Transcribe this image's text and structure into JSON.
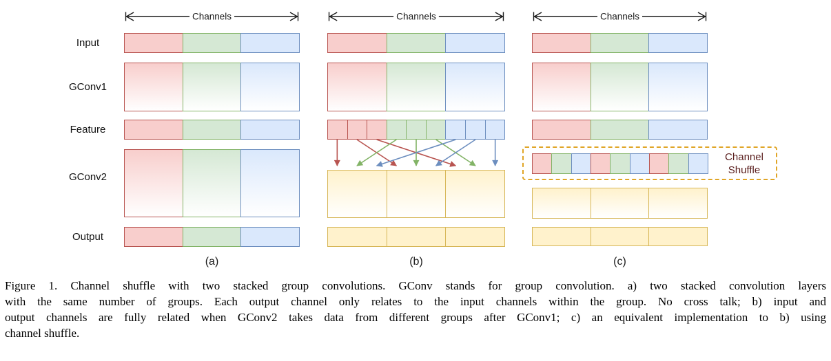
{
  "palette": {
    "red_fill": "#f8cecc",
    "red_stroke": "#b85450",
    "green_fill": "#d5e8d4",
    "green_stroke": "#82b366",
    "blue_fill": "#dae8fc",
    "blue_stroke": "#6c8ebf",
    "yellow_fill": "#fff2cc",
    "yellow_stroke": "#d6b656",
    "shuffle_box_stroke": "#e0a526",
    "shuffle_label_color": "#5c2120"
  },
  "labels": {
    "channels": "Channels",
    "rows": [
      "Input",
      "GConv1",
      "Feature",
      "GConv2",
      "Output"
    ],
    "panel_tags": [
      "(a)",
      "(b)",
      "(c)"
    ],
    "channel_shuffle": [
      "Channel",
      "Shuffle"
    ]
  },
  "diagram": {
    "panel_a": {
      "input": [
        "red",
        "green",
        "blue"
      ],
      "gconv1": [
        "red",
        "green",
        "blue"
      ],
      "feature": [
        "red",
        "green",
        "blue"
      ],
      "gconv2": [
        "red",
        "green",
        "blue"
      ],
      "output": [
        "red",
        "green",
        "blue"
      ]
    },
    "panel_b": {
      "input": [
        "red",
        "green",
        "blue"
      ],
      "gconv1": [
        "red",
        "green",
        "blue"
      ],
      "feature": [
        "red",
        "red",
        "red",
        "green",
        "green",
        "green",
        "blue",
        "blue",
        "blue"
      ],
      "gconv2": [
        "yellow",
        "yellow",
        "yellow"
      ],
      "output": [
        "yellow",
        "yellow",
        "yellow"
      ],
      "arrows": [
        {
          "color": "red",
          "from": 0,
          "to": 0
        },
        {
          "color": "red",
          "from": 1,
          "to": 3
        },
        {
          "color": "red",
          "from": 2,
          "to": 6
        },
        {
          "color": "green",
          "from": 3,
          "to": 1
        },
        {
          "color": "green",
          "from": 4,
          "to": 4
        },
        {
          "color": "green",
          "from": 5,
          "to": 7
        },
        {
          "color": "blue",
          "from": 6,
          "to": 2
        },
        {
          "color": "blue",
          "from": 7,
          "to": 5
        },
        {
          "color": "blue",
          "from": 8,
          "to": 8
        }
      ]
    },
    "panel_c": {
      "input": [
        "red",
        "green",
        "blue"
      ],
      "gconv1": [
        "red",
        "green",
        "blue"
      ],
      "feature": [
        "red",
        "green",
        "blue"
      ],
      "shuffle": [
        "red",
        "green",
        "blue",
        "red",
        "green",
        "blue",
        "red",
        "green",
        "blue"
      ],
      "gconv2": [
        "yellow",
        "yellow",
        "yellow"
      ],
      "output": [
        "yellow",
        "yellow",
        "yellow"
      ]
    }
  },
  "caption": {
    "lines": [
      "Figure 1. Channel shuffle with two stacked group convolutions. GConv stands for group convolution. a) two stacked convolution layers",
      "with the same number of groups. Each output channel only relates to the input channels within the group. No cross talk; b) input and",
      "output channels are fully related when GConv2 takes data from different groups after GConv1; c) an equivalent implementation to b) using",
      "channel shuffle."
    ]
  }
}
